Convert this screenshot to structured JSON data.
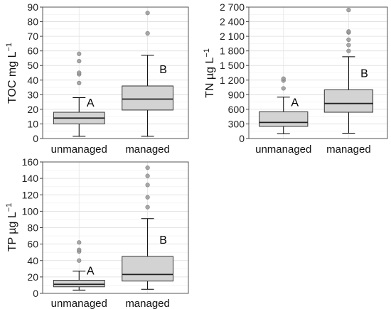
{
  "chart_data": [
    {
      "type": "box",
      "ylabel": "TOC mg L",
      "ylabel_exp": "−1",
      "ylim": [
        0,
        90
      ],
      "yticks": [
        "0",
        "10",
        "20",
        "30",
        "40",
        "50",
        "60",
        "70",
        "80",
        "90"
      ],
      "yticks_values": [
        0,
        10,
        20,
        30,
        40,
        50,
        60,
        70,
        80,
        90
      ],
      "categories": [
        "unmanaged",
        "managed"
      ],
      "boxes": [
        {
          "category": "unmanaged",
          "whisker_low": 1.5,
          "q1": 10,
          "median": 14,
          "q3": 18,
          "whisker_high": 28,
          "outliers": [
            38,
            44,
            45,
            53,
            58
          ],
          "letter": "A"
        },
        {
          "category": "managed",
          "whisker_low": 1.5,
          "q1": 19.5,
          "median": 27,
          "q3": 36,
          "whisker_high": 57,
          "outliers": [
            72,
            86
          ],
          "letter": "B"
        }
      ],
      "grid": true
    },
    {
      "type": "box",
      "ylabel": "TN µg L",
      "ylabel_exp": "−1",
      "ylim": [
        0,
        2700
      ],
      "yticks": [
        "0",
        "300",
        "600",
        "900",
        "1 200",
        "1 500",
        "1 800",
        "2 100",
        "2 400",
        "2 700"
      ],
      "yticks_values": [
        0,
        300,
        600,
        900,
        1200,
        1500,
        1800,
        2100,
        2400,
        2700
      ],
      "categories": [
        "unmanaged",
        "managed"
      ],
      "boxes": [
        {
          "category": "unmanaged",
          "whisker_low": 100,
          "q1": 250,
          "median": 330,
          "q3": 550,
          "whisker_high": 850,
          "outliers": [
            1030,
            1190,
            1230
          ],
          "letter": "A"
        },
        {
          "category": "managed",
          "whisker_low": 110,
          "q1": 540,
          "median": 720,
          "q3": 1000,
          "whisker_high": 1680,
          "outliers": [
            1800,
            1920,
            2030,
            2180,
            2200,
            2640
          ],
          "letter": "B"
        }
      ],
      "grid": true
    },
    {
      "type": "box",
      "ylabel": "TP µg L",
      "ylabel_exp": "−1",
      "ylim": [
        0,
        160
      ],
      "yticks": [
        "0",
        "20",
        "40",
        "60",
        "80",
        "100",
        "120",
        "140",
        "160"
      ],
      "yticks_values": [
        0,
        20,
        40,
        60,
        80,
        100,
        120,
        140,
        160
      ],
      "categories": [
        "unmanaged",
        "managed"
      ],
      "boxes": [
        {
          "category": "unmanaged",
          "whisker_low": 4,
          "q1": 8,
          "median": 11,
          "q3": 16,
          "whisker_high": 27,
          "outliers": [
            40,
            51,
            53,
            62
          ],
          "letter": "A"
        },
        {
          "category": "managed",
          "whisker_low": 5,
          "q1": 15,
          "median": 23,
          "q3": 45,
          "whisker_high": 91,
          "outliers": [
            105,
            117,
            132,
            143,
            153
          ],
          "letter": "B"
        }
      ],
      "grid": true
    }
  ]
}
